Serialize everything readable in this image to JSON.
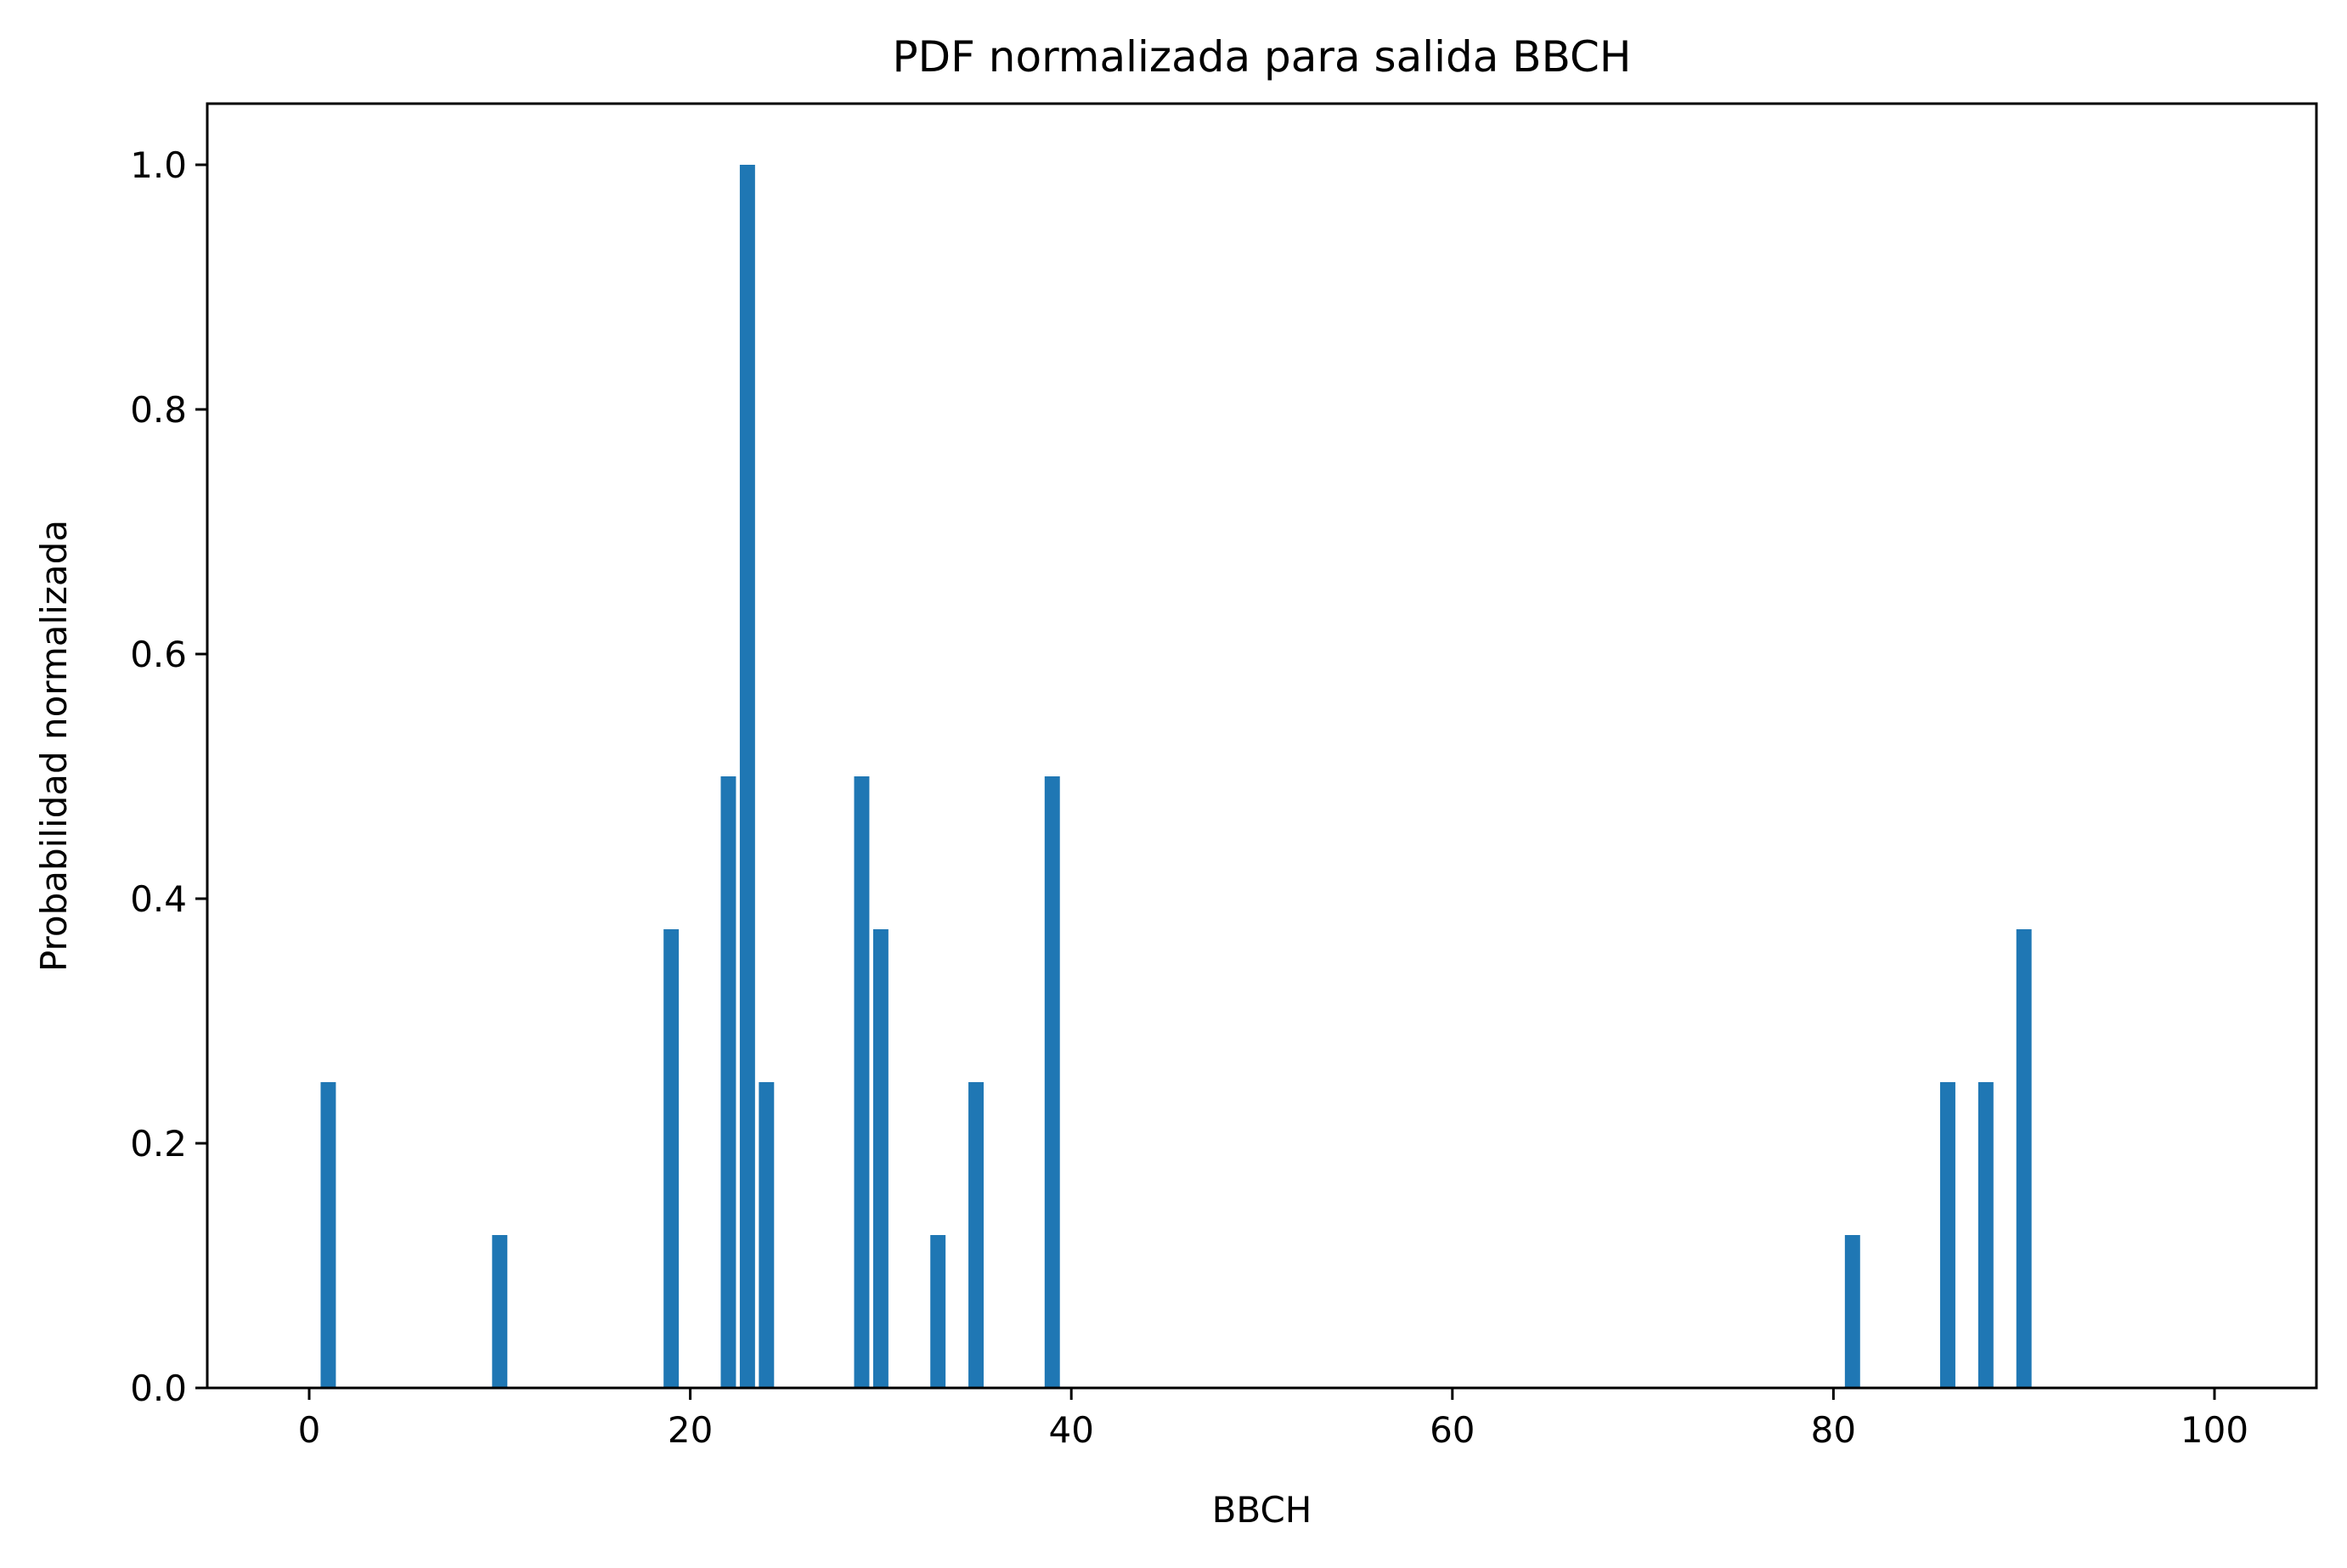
{
  "chart_data": {
    "type": "bar",
    "title": "PDF normalizada para salida BBCH",
    "xlabel": "BBCH",
    "ylabel": "Probabilidad normalizada",
    "xlim": [
      -5.35,
      105.35
    ],
    "ylim": [
      0,
      1.05
    ],
    "xticks": [
      0,
      20,
      40,
      60,
      80,
      100
    ],
    "yticks": [
      0.0,
      0.2,
      0.4,
      0.6,
      0.8,
      1.0
    ],
    "xtick_labels": [
      "0",
      "20",
      "40",
      "60",
      "80",
      "100"
    ],
    "ytick_labels": [
      "0.0",
      "0.2",
      "0.4",
      "0.6",
      "0.8",
      "1.0"
    ],
    "bar_width": 0.8,
    "grid": false,
    "legend": false,
    "colors": {
      "bar": "#1f77b4",
      "axes": "#000000",
      "background": "#ffffff"
    },
    "x": [
      1,
      10,
      19,
      22,
      23,
      24,
      29,
      30,
      33,
      35,
      39,
      81,
      86,
      88,
      90
    ],
    "values": [
      0.25,
      0.125,
      0.375,
      0.5,
      1.0,
      0.25,
      0.5,
      0.375,
      0.125,
      0.25,
      0.5,
      0.125,
      0.25,
      0.25,
      0.375
    ]
  }
}
